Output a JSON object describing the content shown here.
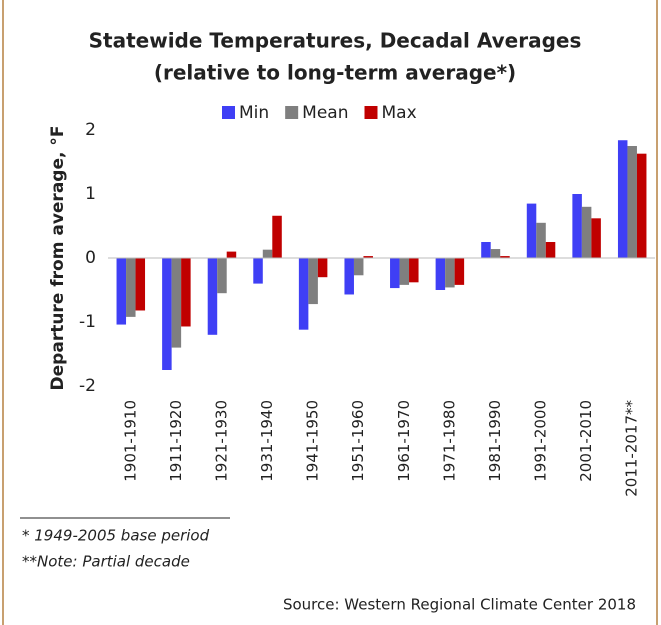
{
  "chart_data": {
    "type": "bar",
    "title": "Statewide Temperatures, Decadal Averages",
    "subtitle": "(relative to long-term average*)",
    "y_label": "Departure from average, °F",
    "categories": [
      "1901-1910",
      "1911-1920",
      "1921-1930",
      "1931-1940",
      "1941-1950",
      "1951-1960",
      "1961-1970",
      "1971-1980",
      "1981-1990",
      "1991-2000",
      "2001-2010",
      "2011-2017**"
    ],
    "series": [
      {
        "name": "Min",
        "color": "#3f3ff5",
        "values": [
          -1.04,
          -1.75,
          -1.2,
          -0.4,
          -1.12,
          -0.57,
          -0.47,
          -0.5,
          0.25,
          0.85,
          1.0,
          1.84
        ]
      },
      {
        "name": "Mean",
        "color": "#7f7f7f",
        "values": [
          -0.92,
          -1.4,
          -0.55,
          0.13,
          -0.72,
          -0.27,
          -0.42,
          -0.46,
          0.14,
          0.55,
          0.8,
          1.75
        ]
      },
      {
        "name": "Max",
        "color": "#c00000",
        "values": [
          -0.82,
          -1.07,
          0.1,
          0.66,
          -0.3,
          0.03,
          -0.38,
          -0.42,
          0.03,
          0.25,
          0.62,
          1.63
        ]
      }
    ],
    "ylim": [
      -2,
      2
    ],
    "yticks": [
      -2,
      -1,
      0,
      1,
      2
    ],
    "grid": false,
    "legend": "top",
    "footnotes": [
      "*  1949-2005 base period",
      "**Note: Partial decade"
    ],
    "source": "Source: Western Regional Climate Center 2018"
  }
}
